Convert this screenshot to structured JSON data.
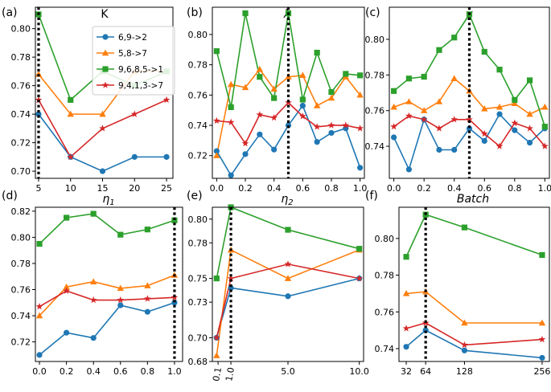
{
  "colors": {
    "s1": "#1f77b4",
    "s2": "#ff7f0e",
    "s3": "#2ca02c",
    "s4": "#d62728"
  },
  "legend": {
    "placement": "top-right of panel (a)",
    "entries": [
      "6,9->2",
      "5,8->7",
      "9,6,8,5->1",
      "9,4,1,3->7"
    ]
  },
  "chart_data": [
    {
      "type": "line",
      "label": "(a)",
      "title": "K",
      "xlim": [
        4.5,
        26
      ],
      "ylim": [
        0.695,
        0.815
      ],
      "xticks": [
        5,
        10,
        15,
        20,
        25
      ],
      "xtick_labels": [
        "5",
        "10",
        "15",
        "20",
        "25"
      ],
      "yticks": [
        0.7,
        0.72,
        0.74,
        0.76,
        0.78,
        0.8
      ],
      "ytick_labels": [
        "0.70",
        "0.72",
        "0.74",
        "0.76",
        "0.78",
        "0.80"
      ],
      "x": [
        5,
        10,
        15,
        20,
        25
      ],
      "vline": 5,
      "series": [
        {
          "name": "6,9->2",
          "values": [
            0.74,
            0.71,
            0.7,
            0.71,
            0.71
          ]
        },
        {
          "name": "5,8->7",
          "values": [
            0.768,
            0.74,
            0.74,
            0.77,
            0.77
          ]
        },
        {
          "name": "9,6,8,5->1",
          "values": [
            0.81,
            0.75,
            0.77,
            0.76,
            0.77
          ]
        },
        {
          "name": "9,4,1,3->7",
          "values": [
            0.75,
            0.71,
            0.73,
            0.74,
            0.75
          ]
        }
      ]
    },
    {
      "type": "line",
      "label": "(b)",
      "title": "λ",
      "xlim": [
        -0.03,
        1.03
      ],
      "ylim": [
        0.705,
        0.818
      ],
      "xticks": [
        0.0,
        0.2,
        0.4,
        0.6,
        0.8,
        1.0
      ],
      "xtick_labels": [
        "0.0",
        "0.2",
        "0.4",
        "0.6",
        "0.8",
        "1.0"
      ],
      "yticks": [
        0.72,
        0.74,
        0.76,
        0.78,
        0.8
      ],
      "ytick_labels": [
        "0.72",
        "0.74",
        "0.76",
        "0.78",
        "0.80"
      ],
      "x": [
        0.0,
        0.1,
        0.2,
        0.3,
        0.4,
        0.5,
        0.6,
        0.7,
        0.8,
        0.9,
        1.0
      ],
      "vline": 0.5,
      "series": [
        {
          "name": "6,9->2",
          "values": [
            0.723,
            0.707,
            0.721,
            0.734,
            0.724,
            0.74,
            0.753,
            0.729,
            0.735,
            0.738,
            0.712
          ]
        },
        {
          "name": "5,8->7",
          "values": [
            0.72,
            0.767,
            0.765,
            0.777,
            0.764,
            0.772,
            0.773,
            0.753,
            0.758,
            0.772,
            0.76
          ]
        },
        {
          "name": "9,6,8,5->1",
          "values": [
            0.789,
            0.752,
            0.814,
            0.772,
            0.758,
            0.814,
            0.757,
            0.788,
            0.762,
            0.774,
            0.773
          ]
        },
        {
          "name": "9,4,1,3->7",
          "values": [
            0.743,
            0.742,
            0.728,
            0.747,
            0.745,
            0.755,
            0.746,
            0.739,
            0.74,
            0.74,
            0.738
          ]
        }
      ]
    },
    {
      "type": "line",
      "label": "(c)",
      "title": "γ",
      "xlim": [
        -0.03,
        1.03
      ],
      "ylim": [
        0.722,
        0.818
      ],
      "xticks": [
        0.0,
        0.2,
        0.4,
        0.6,
        0.8,
        1.0
      ],
      "xtick_labels": [
        "0.0",
        "0.2",
        "0.4",
        "0.6",
        "0.8",
        "1.0"
      ],
      "yticks": [
        0.74,
        0.76,
        0.78,
        0.8
      ],
      "ytick_labels": [
        "0.74",
        "0.76",
        "0.78",
        "0.80"
      ],
      "x": [
        0.0,
        0.1,
        0.2,
        0.3,
        0.4,
        0.5,
        0.6,
        0.7,
        0.8,
        0.9,
        1.0
      ],
      "vline": 0.5,
      "series": [
        {
          "name": "6,9->2",
          "values": [
            0.745,
            0.727,
            0.755,
            0.738,
            0.738,
            0.75,
            0.743,
            0.758,
            0.749,
            0.742,
            0.75
          ]
        },
        {
          "name": "5,8->7",
          "values": [
            0.762,
            0.765,
            0.76,
            0.765,
            0.778,
            0.771,
            0.761,
            0.762,
            0.764,
            0.758,
            0.762
          ]
        },
        {
          "name": "9,6,8,5->1",
          "values": [
            0.771,
            0.778,
            0.779,
            0.794,
            0.801,
            0.814,
            0.793,
            0.783,
            0.766,
            0.777,
            0.751
          ]
        },
        {
          "name": "9,4,1,3->7",
          "values": [
            0.751,
            0.757,
            0.755,
            0.75,
            0.755,
            0.755,
            0.747,
            0.74,
            0.753,
            0.75,
            0.74
          ]
        }
      ]
    },
    {
      "type": "line",
      "label": "(d)",
      "title": "η1",
      "xlim": [
        -0.03,
        1.06
      ],
      "ylim": [
        0.705,
        0.823
      ],
      "xticks": [
        0.0,
        0.2,
        0.4,
        0.6,
        0.8,
        1.0
      ],
      "xtick_labels": [
        "0.0",
        "0.2",
        "0.4",
        "0.6",
        "0.8",
        "1.0"
      ],
      "yticks": [
        0.72,
        0.74,
        0.76,
        0.78,
        0.8,
        0.82
      ],
      "ytick_labels": [
        "0.72",
        "0.74",
        "0.76",
        "0.78",
        "0.80",
        "0.82"
      ],
      "x": [
        0.0,
        0.2,
        0.4,
        0.6,
        0.8,
        1.0
      ],
      "vline": 1.0,
      "series": [
        {
          "name": "6,9->2",
          "values": [
            0.71,
            0.727,
            0.723,
            0.748,
            0.743,
            0.75
          ]
        },
        {
          "name": "5,8->7",
          "values": [
            0.74,
            0.762,
            0.766,
            0.761,
            0.763,
            0.771
          ]
        },
        {
          "name": "9,6,8,5->1",
          "values": [
            0.795,
            0.815,
            0.818,
            0.802,
            0.806,
            0.813
          ]
        },
        {
          "name": "9,4,1,3->7",
          "values": [
            0.747,
            0.759,
            0.752,
            0.752,
            0.753,
            0.754
          ]
        }
      ]
    },
    {
      "type": "line",
      "label": "(e)",
      "title": "η2",
      "xlim": [
        -0.3,
        10.3
      ],
      "ylim": [
        0.68,
        0.81
      ],
      "xticks": [
        0.1,
        1.0,
        5.0,
        10.0
      ],
      "xtick_labels": [
        "0.1",
        "1.0",
        "5.0",
        "10.0"
      ],
      "yticks": [
        0.68,
        0.7,
        0.73,
        0.75,
        0.78,
        0.8
      ],
      "ytick_labels": [
        "0.68",
        "0.70",
        "0.73",
        "0.75",
        "0.78",
        "0.80"
      ],
      "x": [
        0.0,
        1.0,
        5.0,
        10.0
      ],
      "vline": 1.0,
      "series": [
        {
          "name": "6,9->2",
          "values": [
            0.7,
            0.742,
            0.735,
            0.75
          ]
        },
        {
          "name": "5,8->7",
          "values": [
            0.685,
            0.774,
            0.75,
            0.774
          ]
        },
        {
          "name": "9,6,8,5->1",
          "values": [
            0.75,
            0.81,
            0.791,
            0.775
          ]
        },
        {
          "name": "9,4,1,3->7",
          "values": [
            0.7,
            0.75,
            0.762,
            0.75
          ]
        }
      ]
    },
    {
      "type": "line",
      "label": "(f)",
      "title": "Batch",
      "xlim": [
        20,
        268
      ],
      "ylim": [
        0.733,
        0.817
      ],
      "xticks": [
        32,
        64,
        128,
        256
      ],
      "xtick_labels": [
        "32",
        "64",
        "128",
        "256"
      ],
      "yticks": [
        0.74,
        0.76,
        0.78,
        0.8
      ],
      "ytick_labels": [
        "0.74",
        "0.76",
        "0.78",
        "0.80"
      ],
      "x": [
        32,
        64,
        128,
        256
      ],
      "vline": 64,
      "series": [
        {
          "name": "6,9->2",
          "values": [
            0.741,
            0.75,
            0.739,
            0.735
          ]
        },
        {
          "name": "5,8->7",
          "values": [
            0.77,
            0.771,
            0.754,
            0.754
          ]
        },
        {
          "name": "9,6,8,5->1",
          "values": [
            0.79,
            0.813,
            0.806,
            0.791
          ]
        },
        {
          "name": "9,4,1,3->7",
          "values": [
            0.751,
            0.754,
            0.742,
            0.745
          ]
        }
      ]
    }
  ]
}
